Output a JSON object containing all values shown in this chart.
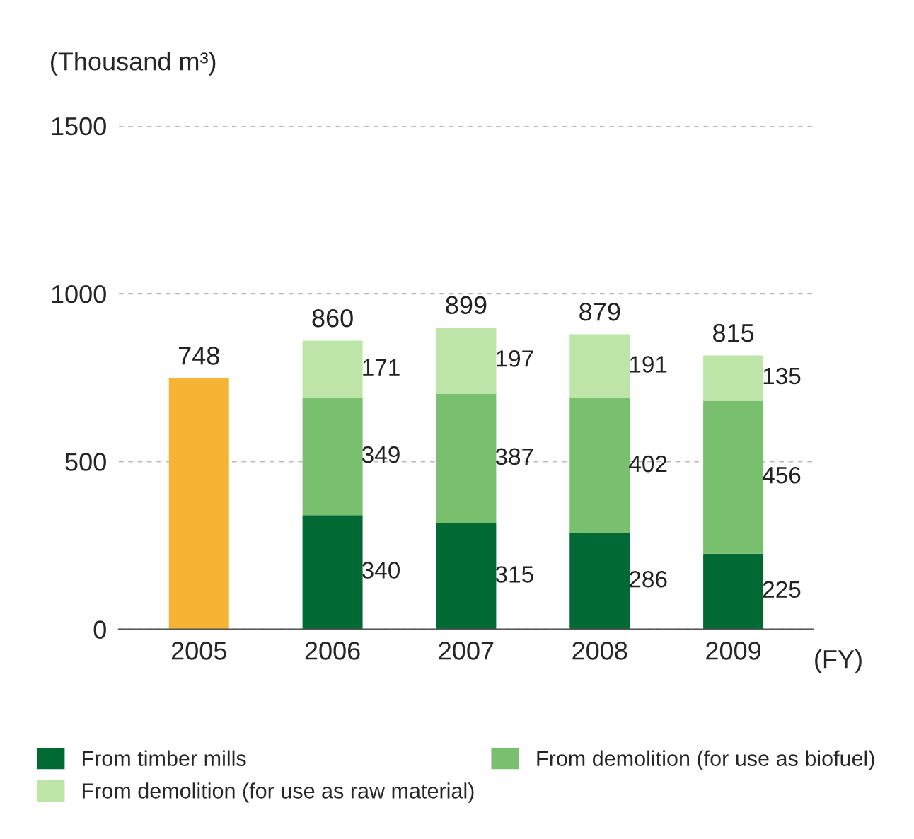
{
  "chart_data": {
    "type": "bar",
    "stacked": true,
    "ylabel": "(Thousand m³)",
    "xlabel": "(FY)",
    "categories": [
      "2005",
      "2006",
      "2007",
      "2008",
      "2009"
    ],
    "series": [
      {
        "color": "#f7b334",
        "values": [
          748,
          null,
          null,
          null,
          null
        ]
      },
      {
        "name": "From timber mills",
        "color": "#006934",
        "values": [
          null,
          340,
          315,
          286,
          225
        ],
        "value_labels": [
          null,
          "340",
          "315",
          "286",
          "225"
        ]
      },
      {
        "name": "From demolition (for use as biofuel)",
        "color": "#78c06e",
        "values": [
          null,
          349,
          387,
          402,
          456
        ],
        "value_labels": [
          null,
          "349",
          "387",
          "402",
          "456"
        ]
      },
      {
        "name": "From demolition (for use as raw material)",
        "color": "#bde5a8",
        "values": [
          null,
          171,
          197,
          191,
          135
        ],
        "value_labels": [
          null,
          "171",
          "197",
          "191",
          "135"
        ]
      }
    ],
    "totals": [
      "748",
      "860",
      "899",
      "879",
      "815"
    ],
    "ylim": [
      0,
      1500
    ],
    "yticks": [
      0,
      500,
      1000,
      1500
    ],
    "grid": "y",
    "legend": "bottom"
  }
}
